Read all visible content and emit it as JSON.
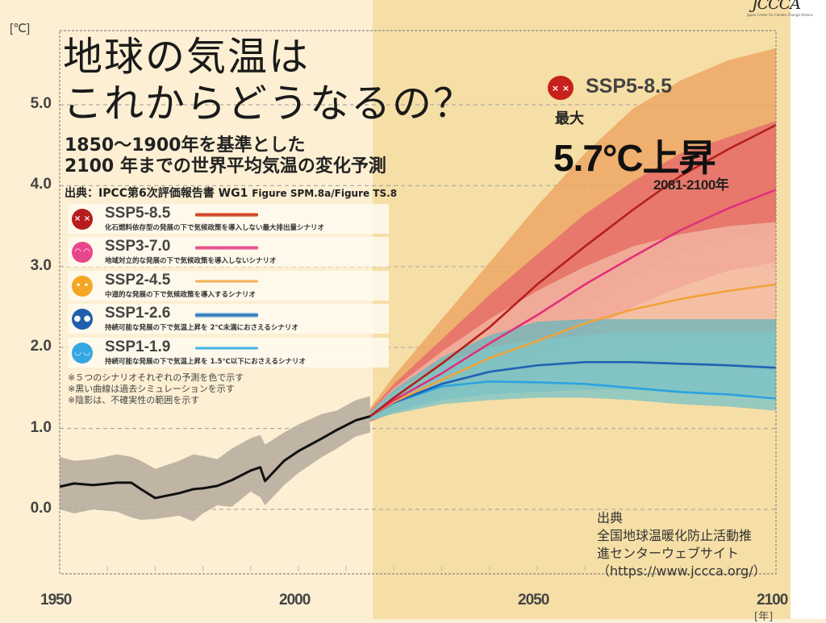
{
  "header": {
    "title_line1": "地球の気温は",
    "title_line2": "これからどうなるの？",
    "subtitle_line1": "1850～1900年を基準とした",
    "subtitle_line2": "2100 年までの世界平均気温の変化予測",
    "source_prefix": "出典：IPCC第6次評価報告書 WG1",
    "source_figure": "Figure SPM.8a/Figure TS.8"
  },
  "logo": {
    "text": "JCCCA",
    "subtext": "Japan Center for Climate Change Actions"
  },
  "legend": [
    {
      "name": "SSP5-8.5",
      "desc": "化石燃料依存型の発展の下で気候政策を導入しない最大排出量シナリオ",
      "color": "#c0281c",
      "face_color": "#b71c1c",
      "face": "× ×"
    },
    {
      "name": "SSP3-7.0",
      "desc": "地域対立的な発展の下で気候政策を導入しないシナリオ",
      "color": "#e0307a",
      "face_color": "#e8458b",
      "face": "◠ ◠"
    },
    {
      "name": "SSP2-4.5",
      "desc": "中道的な発展の下で気候政策を導入するシナリオ",
      "color": "#f2a23a",
      "face_color": "#f5a623",
      "face": "• •"
    },
    {
      "name": "SSP1-2.6",
      "desc": "持続可能な発展の下で気温上昇を 2℃未満におさえるシナリオ",
      "color": "#1f63b4",
      "face_color": "#1f5fae",
      "face": "● ●"
    },
    {
      "name": "SSP1-1.9",
      "desc": "持続可能な発展の下で気温上昇を 1.5℃以下におさえるシナリオ",
      "color": "#2aa3e0",
      "face_color": "#35a7e3",
      "face": "◡ ◡"
    }
  ],
  "notes": [
    "※５つのシナリオそれぞれの予測を色で示す",
    "※黒い曲線は過去シミュレーションを示す",
    "※陰影は、不確実性の範囲を示す"
  ],
  "callout": {
    "scenario": "SSP5-8.5",
    "label": "最大",
    "value": "5.7°C上昇",
    "period": "2081-2100年"
  },
  "credit": {
    "line1": "出典",
    "line2": "全国地球温暖化防止活動推",
    "line3": "進センターウェブサイト",
    "line4": "（https://www.jccca.org/）"
  },
  "chart_data": {
    "type": "line",
    "title": "地球の気温はこれからどうなるの？",
    "xlabel": "[年]",
    "ylabel": "[℃]",
    "xlim": [
      1950,
      2100
    ],
    "ylim": [
      -0.3,
      5.7
    ],
    "x_ticks": [
      1950,
      2000,
      2050,
      2100
    ],
    "y_ticks": [
      "0.0",
      "1.0",
      "2.0",
      "3.0",
      "4.0",
      "5.0"
    ],
    "y_tick_values": [
      0,
      1,
      2,
      3,
      4,
      5
    ],
    "grid": true,
    "projection_start": 2015,
    "historical": {
      "name": "過去シミュレーション",
      "color": "#111111",
      "band_color": "#b5aa9c",
      "x": [
        1950,
        1953,
        1957,
        1962,
        1965,
        1967,
        1970,
        1975,
        1978,
        1980,
        1983,
        1986,
        1990,
        1992,
        1993,
        1997,
        2000,
        2005,
        2008,
        2012,
        2015
      ],
      "y": [
        0.28,
        0.32,
        0.3,
        0.33,
        0.33,
        0.25,
        0.14,
        0.2,
        0.25,
        0.26,
        0.29,
        0.36,
        0.48,
        0.52,
        0.35,
        0.6,
        0.72,
        0.88,
        0.98,
        1.1,
        1.15
      ],
      "upper": [
        0.65,
        0.6,
        0.62,
        0.68,
        0.65,
        0.6,
        0.5,
        0.6,
        0.68,
        0.66,
        0.62,
        0.75,
        0.88,
        0.92,
        0.8,
        0.95,
        1.05,
        1.18,
        1.22,
        1.35,
        1.4
      ],
      "lower": [
        0.0,
        -0.05,
        0.0,
        -0.03,
        -0.1,
        -0.13,
        -0.12,
        -0.08,
        -0.15,
        -0.05,
        0.05,
        0.03,
        0.22,
        0.15,
        0.05,
        0.3,
        0.45,
        0.65,
        0.75,
        0.9,
        0.95
      ]
    },
    "x": [
      2015,
      2020,
      2030,
      2040,
      2050,
      2060,
      2070,
      2080,
      2090,
      2100
    ],
    "series": [
      {
        "name": "SSP1-1.9",
        "color": "#2aa3e0",
        "band_color": "#7fc4c6",
        "values": [
          1.15,
          1.32,
          1.52,
          1.58,
          1.57,
          1.55,
          1.5,
          1.45,
          1.42,
          1.37
        ],
        "upper": [
          1.2,
          1.45,
          1.8,
          2.0,
          2.1,
          2.15,
          2.2,
          2.2,
          2.2,
          2.2
        ],
        "lower": [
          1.1,
          1.18,
          1.3,
          1.35,
          1.38,
          1.38,
          1.35,
          1.3,
          1.27,
          1.22
        ]
      },
      {
        "name": "SSP1-2.6",
        "color": "#1f63b4",
        "band_color": "#6fb7bb",
        "values": [
          1.15,
          1.32,
          1.55,
          1.7,
          1.78,
          1.82,
          1.82,
          1.8,
          1.78,
          1.75
        ],
        "upper": [
          1.2,
          1.48,
          1.88,
          2.15,
          2.32,
          2.35,
          2.35,
          2.35,
          2.35,
          2.35
        ],
        "lower": [
          1.1,
          1.2,
          1.35,
          1.42,
          1.45,
          1.48,
          1.48,
          1.45,
          1.42,
          1.4
        ]
      },
      {
        "name": "SSP2-4.5",
        "color": "#f2a23a",
        "band_color": "#f5b7a4",
        "values": [
          1.15,
          1.33,
          1.6,
          1.87,
          2.08,
          2.3,
          2.47,
          2.6,
          2.7,
          2.78
        ],
        "upper": [
          1.2,
          1.5,
          1.95,
          2.35,
          2.7,
          3.0,
          3.25,
          3.4,
          3.5,
          3.55
        ],
        "lower": [
          1.1,
          1.2,
          1.4,
          1.55,
          1.7,
          1.85,
          1.95,
          2.05,
          2.1,
          2.15
        ]
      },
      {
        "name": "SSP3-7.0",
        "color": "#e0307a",
        "band_color": "#e56a6a",
        "values": [
          1.15,
          1.35,
          1.68,
          2.05,
          2.4,
          2.78,
          3.12,
          3.45,
          3.72,
          3.95
        ],
        "upper": [
          1.22,
          1.55,
          2.1,
          2.65,
          3.15,
          3.65,
          4.05,
          4.4,
          4.6,
          4.8
        ],
        "lower": [
          1.08,
          1.2,
          1.42,
          1.68,
          1.95,
          2.2,
          2.5,
          2.75,
          2.95,
          3.05
        ]
      },
      {
        "name": "SSP5-8.5",
        "color": "#b5201a",
        "band_color": "#eda260",
        "values": [
          1.15,
          1.38,
          1.8,
          2.25,
          2.78,
          3.25,
          3.7,
          4.12,
          4.45,
          4.75
        ],
        "upper": [
          1.25,
          1.65,
          2.35,
          3.05,
          3.75,
          4.4,
          4.95,
          5.3,
          5.55,
          5.7
        ],
        "lower": [
          1.1,
          1.22,
          1.5,
          1.8,
          2.15,
          2.5,
          2.85,
          3.15,
          3.35,
          3.45
        ]
      }
    ]
  }
}
